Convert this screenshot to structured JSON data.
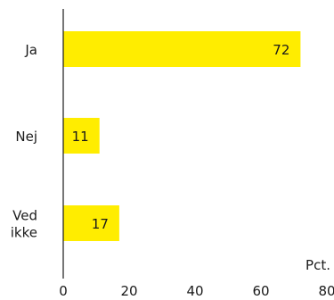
{
  "chart_data": {
    "type": "bar",
    "orientation": "horizontal",
    "categories": [
      [
        "Ja"
      ],
      [
        "Nej"
      ],
      [
        "Ved",
        "ikke"
      ]
    ],
    "values": [
      72,
      11,
      17
    ],
    "value_labels": [
      "72",
      "11",
      "17"
    ],
    "xlim": [
      0,
      80
    ],
    "xticks": [
      0,
      20,
      40,
      60,
      80
    ],
    "tick_labels": [
      "0",
      "20",
      "40",
      "60",
      "80"
    ],
    "x_unit_label": "Pct.",
    "grid": false,
    "bar_color": "#ffed00",
    "axis_color": "#1a1a1a"
  }
}
